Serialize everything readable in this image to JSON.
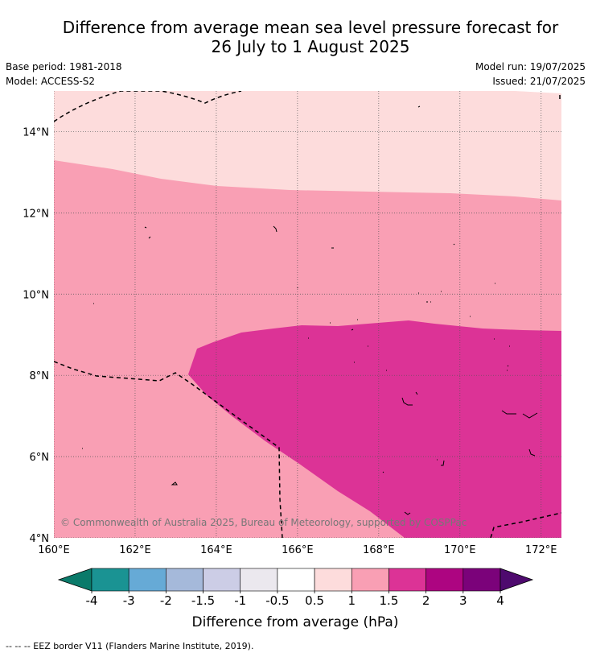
{
  "title_line1": "Difference from average mean sea level pressure forecast for",
  "title_line2": "26 July to 1 August 2025",
  "base_period": "Base period: 1981-2018",
  "model": "Model: ACCESS-S2",
  "model_run": "Model run: 19/07/2025",
  "issued": "Issued: 21/07/2025",
  "copyright": "© Commonwealth of Australia 2025, Bureau of Meteorology, supported by COSPPac",
  "colorbar_label": "Difference from average (hPa)",
  "footer": "-- -- -- EEZ border V11 (Flanders Marine Institute, 2019).",
  "colors": {
    "c_0_5_1": "#fddcdc",
    "c_1_1_5": "#f99fb4",
    "c_1_5_2": "#dc3396"
  },
  "map": {
    "lon_range": [
      160,
      172.5
    ],
    "lat_range": [
      4,
      15
    ],
    "lon_ticks": [
      "160°E",
      "162°E",
      "164°E",
      "166°E",
      "168°E",
      "170°E",
      "172°E"
    ],
    "lat_ticks": [
      "4°N",
      "6°N",
      "8°N",
      "10°N",
      "12°N",
      "14°N"
    ]
  },
  "colorbar": {
    "ticks": [
      "-4",
      "-3",
      "-2",
      "-1.5",
      "-1",
      "-0.5",
      "0.5",
      "1",
      "1.5",
      "2",
      "3",
      "4"
    ],
    "low_color": "#0a7a6a",
    "high_color": "#4e0a6e",
    "colors": [
      "#1a9393",
      "#66aad6",
      "#a5b9da",
      "#cccde6",
      "#ebe8ee",
      "#ffffff",
      "#fddcdc",
      "#f99fb4",
      "#dc3396",
      "#ad0581",
      "#7b027a"
    ]
  }
}
